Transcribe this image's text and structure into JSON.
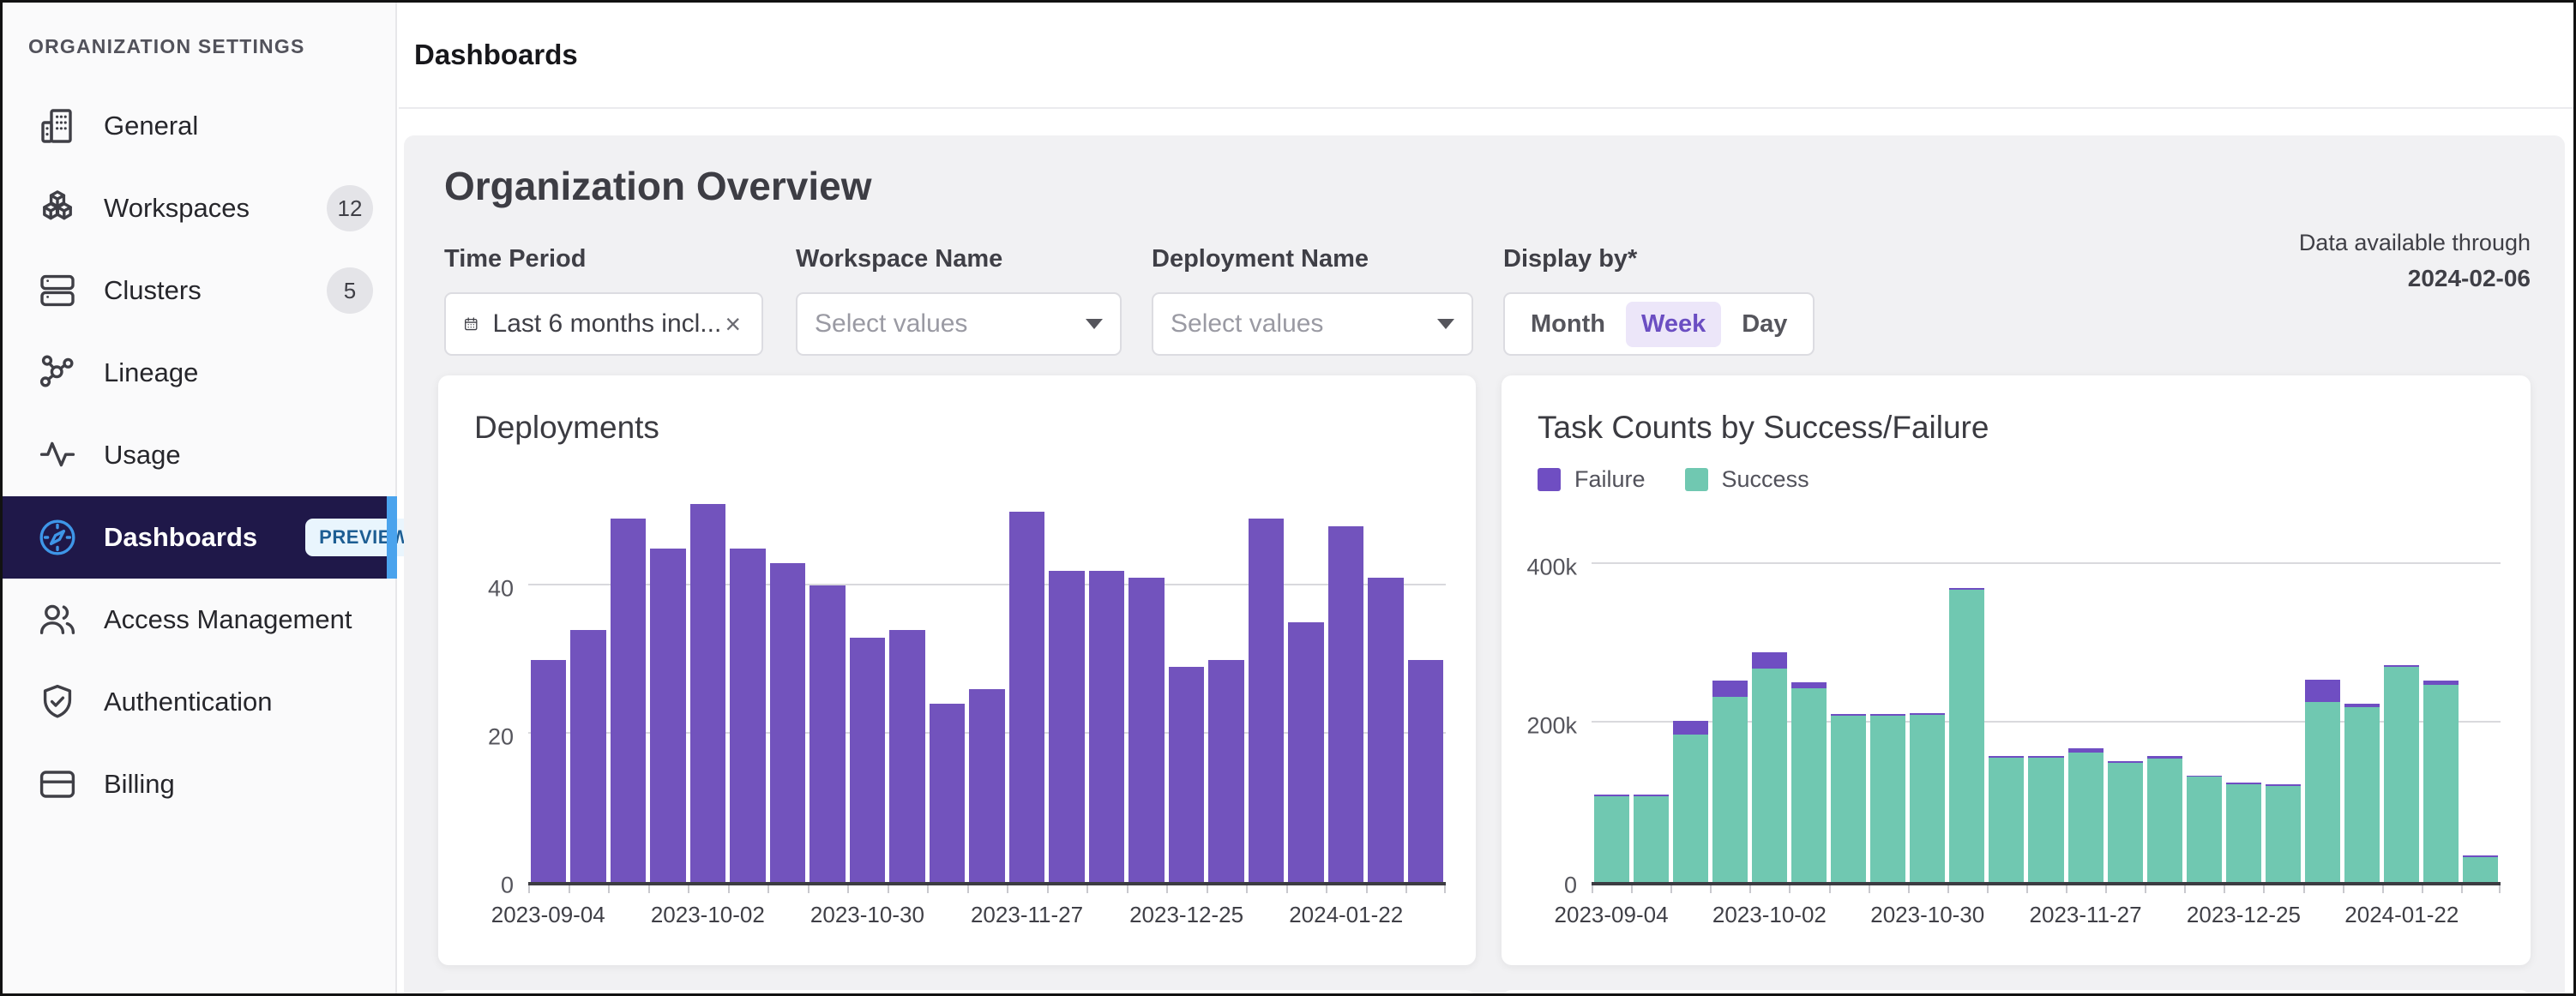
{
  "sidebar": {
    "section_title": "ORGANIZATION SETTINGS",
    "items": [
      {
        "label": "General",
        "icon": "building-icon"
      },
      {
        "label": "Workspaces",
        "icon": "cubes-icon",
        "badge": "12"
      },
      {
        "label": "Clusters",
        "icon": "servers-icon",
        "badge": "5"
      },
      {
        "label": "Lineage",
        "icon": "lineage-icon"
      },
      {
        "label": "Usage",
        "icon": "activity-icon"
      },
      {
        "label": "Dashboards",
        "icon": "compass-icon",
        "selected": true,
        "tag": "PREVIEW"
      },
      {
        "label": "Access Management",
        "icon": "users-icon"
      },
      {
        "label": "Authentication",
        "icon": "shield-check-icon"
      },
      {
        "label": "Billing",
        "icon": "credit-card-icon"
      }
    ]
  },
  "header": {
    "title": "Dashboards"
  },
  "overview": {
    "title": "Organization Overview",
    "data_available_label": "Data available through",
    "data_available_date": "2024-02-06",
    "filters": [
      {
        "label": "Time Period",
        "type": "date",
        "icon": "calendar-icon",
        "value": "Last 6 months incl...",
        "clear_icon": "clear-icon"
      },
      {
        "label": "Workspace Name",
        "type": "select",
        "placeholder": "Select values",
        "caret_icon": "chevron-down-icon"
      },
      {
        "label": "Deployment Name",
        "type": "select",
        "placeholder": "Select values",
        "caret_icon": "chevron-down-icon"
      },
      {
        "label": "Display by*",
        "type": "segmented",
        "options": [
          "Month",
          "Week",
          "Day"
        ],
        "selected": "Week"
      }
    ]
  },
  "chart_data": [
    {
      "type": "bar",
      "title": "Deployments",
      "values": [
        30,
        34,
        49,
        45,
        51,
        45,
        43,
        40,
        33,
        34,
        24,
        26,
        50,
        42,
        42,
        41,
        29,
        30,
        49,
        35,
        48,
        41,
        30
      ],
      "color": "#7253bd",
      "ylim": [
        0,
        51
      ],
      "yticks": [
        {
          "value": 0,
          "label": "0"
        },
        {
          "value": 20,
          "label": "20"
        },
        {
          "value": 40,
          "label": "40"
        }
      ],
      "xtick_labels": [
        "2023-09-04",
        "2023-10-02",
        "2023-10-30",
        "2023-11-27",
        "2023-12-25",
        "2024-01-22"
      ],
      "xtick_indices": [
        0,
        4,
        8,
        12,
        16,
        20
      ],
      "grid": true,
      "legend_position": "none"
    },
    {
      "type": "bar",
      "stacked": true,
      "title": "Task Counts by Success/Failure",
      "legend": [
        {
          "name": "Failure",
          "color": "#6f4ec2"
        },
        {
          "name": "Success",
          "color": "#70c8b1"
        }
      ],
      "legend_position": "top-left",
      "series": [
        {
          "name": "Success",
          "color": "#70c8b1",
          "values": [
            108000,
            108000,
            185000,
            233000,
            268000,
            243000,
            209000,
            209000,
            210000,
            367000,
            156000,
            156000,
            163000,
            150000,
            155000,
            132000,
            123000,
            121000,
            226000,
            220000,
            270000,
            248000,
            31000
          ]
        },
        {
          "name": "Failure",
          "color": "#6f4ec2",
          "values": [
            2000,
            2000,
            17000,
            20000,
            21000,
            8000,
            2000,
            2000,
            2000,
            3000,
            2000,
            2000,
            5000,
            2000,
            3000,
            2000,
            2000,
            2000,
            28000,
            4000,
            3000,
            5000,
            2000
          ]
        }
      ],
      "ylim": [
        0,
        475000
      ],
      "yticks": [
        {
          "value": 0,
          "label": "0"
        },
        {
          "value": 200000,
          "label": "200k"
        },
        {
          "value": 400000,
          "label": "400k"
        }
      ],
      "xtick_labels": [
        "2023-09-04",
        "2023-10-02",
        "2023-10-30",
        "2023-11-27",
        "2023-12-25",
        "2024-01-22"
      ],
      "xtick_indices": [
        0,
        4,
        8,
        12,
        16,
        20
      ],
      "grid": true
    }
  ],
  "colors": {
    "accent_purple": "#7253bd",
    "failure_purple": "#6f4ec2",
    "success_teal": "#70c8b1",
    "selected_nav_bg": "#1f1849",
    "selected_nav_accent": "#4aa3ed",
    "panel_bg": "#f1f1f3",
    "week_active_bg": "#ece6f9",
    "week_active_text": "#6b4ec2"
  }
}
